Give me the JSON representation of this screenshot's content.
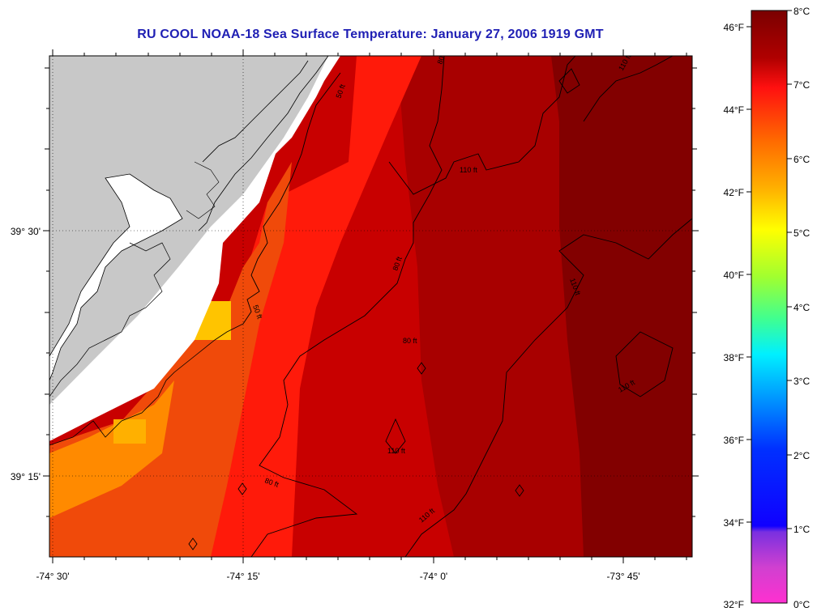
{
  "title": "RU COOL  NOAA-18  Sea Surface Temperature:  January 27, 2006 1919 GMT",
  "map": {
    "longitude_labels": [
      "-74° 30'",
      "-74° 15'",
      "-74° 0'",
      "-73° 45'"
    ],
    "latitude_labels": [
      "39° 30'",
      "39° 15'"
    ],
    "contours": [
      {
        "label": "50 ft"
      },
      {
        "label": "80 ft"
      },
      {
        "label": "110 ft"
      }
    ],
    "colors": {
      "land": "#c8c8c8",
      "no_data": "#ffffff",
      "warmest": "#7a0000",
      "coastline": "#000000"
    }
  },
  "colorbar": {
    "fahrenheit_labels": [
      "46°F",
      "44°F",
      "42°F",
      "40°F",
      "38°F",
      "36°F",
      "34°F",
      "32°F"
    ],
    "celsius_labels": [
      "8°C",
      "7°C",
      "6°C",
      "5°C",
      "4°C",
      "3°C",
      "2°C",
      "1°C",
      "0°C"
    ],
    "range_celsius": [
      0,
      8
    ]
  }
}
